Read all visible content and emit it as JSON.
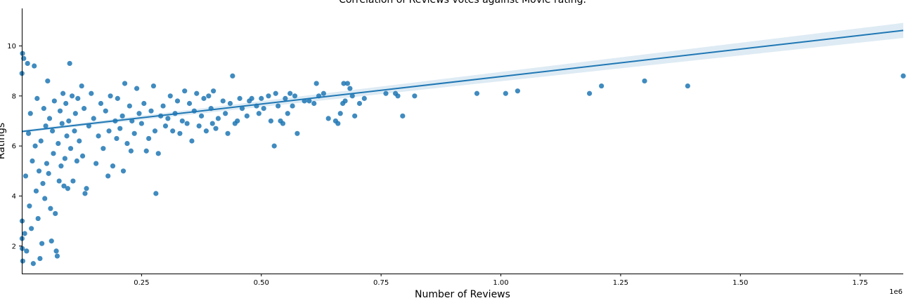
{
  "chart_data": {
    "type": "scatter",
    "title": "Correlation of Reviews votes against Movie rating.",
    "xlabel": "Number of Reviews",
    "ylabel": "Ratings",
    "x_offset_label": "1e6",
    "xlim": [
      0,
      1840000
    ],
    "ylim": [
      0.9,
      11.5
    ],
    "xticks": [
      {
        "value": 250000,
        "label": "0.25"
      },
      {
        "value": 500000,
        "label": "0.50"
      },
      {
        "value": 750000,
        "label": "0.75"
      },
      {
        "value": 1000000,
        "label": "1.00"
      },
      {
        "value": 1250000,
        "label": "1.25"
      },
      {
        "value": 1500000,
        "label": "1.50"
      },
      {
        "value": 1750000,
        "label": "1.75"
      }
    ],
    "yticks": [
      {
        "value": 2,
        "label": "2"
      },
      {
        "value": 4,
        "label": "4"
      },
      {
        "value": 6,
        "label": "6"
      },
      {
        "value": 8,
        "label": "8"
      },
      {
        "value": 10,
        "label": "10"
      }
    ],
    "grid": false,
    "colors": {
      "points": "#1f77b4",
      "line": "#1f77b4",
      "band": "#1f77b4"
    },
    "regression": {
      "x": [
        0,
        1840000
      ],
      "y": [
        6.58,
        10.62
      ],
      "ci_halfwidth_at_x0": 0.05,
      "ci_halfwidth_at_xmax": 0.3
    },
    "points": [
      [
        1840000,
        8.8
      ],
      [
        1390000,
        8.4
      ],
      [
        1300000,
        8.6
      ],
      [
        1210000,
        8.4
      ],
      [
        1185000,
        8.1
      ],
      [
        1035000,
        8.2
      ],
      [
        1010000,
        8.1
      ],
      [
        950000,
        8.1
      ],
      [
        820000,
        8.0
      ],
      [
        795000,
        7.2
      ],
      [
        785000,
        8.0
      ],
      [
        780000,
        8.1
      ],
      [
        760000,
        8.1
      ],
      [
        715000,
        7.9
      ],
      [
        705000,
        7.7
      ],
      [
        695000,
        7.2
      ],
      [
        690000,
        8.0
      ],
      [
        685000,
        8.3
      ],
      [
        680000,
        8.5
      ],
      [
        675000,
        7.8
      ],
      [
        672000,
        8.5
      ],
      [
        670000,
        7.7
      ],
      [
        665000,
        7.3
      ],
      [
        660000,
        6.9
      ],
      [
        655000,
        7.0
      ],
      [
        640000,
        7.1
      ],
      [
        630000,
        8.1
      ],
      [
        620000,
        8.0
      ],
      [
        615000,
        8.5
      ],
      [
        610000,
        7.7
      ],
      [
        600000,
        7.8
      ],
      [
        590000,
        7.8
      ],
      [
        575000,
        6.5
      ],
      [
        570000,
        8.0
      ],
      [
        565000,
        7.6
      ],
      [
        560000,
        8.1
      ],
      [
        555000,
        7.3
      ],
      [
        550000,
        7.9
      ],
      [
        545000,
        6.9
      ],
      [
        540000,
        7.0
      ],
      [
        535000,
        7.6
      ],
      [
        530000,
        8.1
      ],
      [
        527000,
        6.0
      ],
      [
        520000,
        7.0
      ],
      [
        515000,
        8.0
      ],
      [
        505000,
        7.5
      ],
      [
        500000,
        7.9
      ],
      [
        495000,
        7.3
      ],
      [
        490000,
        7.6
      ],
      [
        480000,
        7.9
      ],
      [
        475000,
        7.8
      ],
      [
        470000,
        7.2
      ],
      [
        460000,
        7.5
      ],
      [
        455000,
        7.9
      ],
      [
        450000,
        7.0
      ],
      [
        445000,
        6.9
      ],
      [
        440000,
        8.8
      ],
      [
        435000,
        7.7
      ],
      [
        430000,
        6.5
      ],
      [
        425000,
        7.3
      ],
      [
        420000,
        7.8
      ],
      [
        410000,
        7.1
      ],
      [
        405000,
        6.7
      ],
      [
        400000,
        8.2
      ],
      [
        398000,
        6.9
      ],
      [
        395000,
        7.5
      ],
      [
        390000,
        8.0
      ],
      [
        385000,
        6.6
      ],
      [
        380000,
        7.9
      ],
      [
        375000,
        7.2
      ],
      [
        370000,
        6.8
      ],
      [
        365000,
        8.1
      ],
      [
        360000,
        7.4
      ],
      [
        355000,
        6.2
      ],
      [
        350000,
        7.7
      ],
      [
        345000,
        6.9
      ],
      [
        340000,
        8.2
      ],
      [
        335000,
        7.0
      ],
      [
        330000,
        6.5
      ],
      [
        325000,
        7.8
      ],
      [
        320000,
        7.3
      ],
      [
        315000,
        6.6
      ],
      [
        310000,
        8.0
      ],
      [
        305000,
        7.1
      ],
      [
        300000,
        6.8
      ],
      [
        295000,
        7.6
      ],
      [
        290000,
        7.2
      ],
      [
        285000,
        5.7
      ],
      [
        280000,
        4.1
      ],
      [
        278000,
        6.6
      ],
      [
        275000,
        8.4
      ],
      [
        270000,
        7.4
      ],
      [
        265000,
        6.3
      ],
      [
        260000,
        5.8
      ],
      [
        255000,
        7.7
      ],
      [
        250000,
        6.9
      ],
      [
        245000,
        7.3
      ],
      [
        240000,
        8.3
      ],
      [
        235000,
        6.5
      ],
      [
        230000,
        7.0
      ],
      [
        228000,
        5.8
      ],
      [
        225000,
        7.6
      ],
      [
        220000,
        6.1
      ],
      [
        215000,
        8.5
      ],
      [
        212000,
        5.0
      ],
      [
        210000,
        7.2
      ],
      [
        205000,
        6.7
      ],
      [
        200000,
        7.9
      ],
      [
        198000,
        6.3
      ],
      [
        195000,
        7.0
      ],
      [
        190000,
        5.2
      ],
      [
        185000,
        8.0
      ],
      [
        182000,
        6.6
      ],
      [
        180000,
        4.8
      ],
      [
        175000,
        7.4
      ],
      [
        170000,
        5.9
      ],
      [
        165000,
        7.7
      ],
      [
        160000,
        6.4
      ],
      [
        155000,
        5.3
      ],
      [
        150000,
        7.1
      ],
      [
        145000,
        8.1
      ],
      [
        140000,
        6.8
      ],
      [
        135000,
        4.3
      ],
      [
        132000,
        4.1
      ],
      [
        130000,
        7.5
      ],
      [
        127000,
        5.6
      ],
      [
        125000,
        8.4
      ],
      [
        120000,
        6.2
      ],
      [
        117000,
        7.9
      ],
      [
        115000,
        5.4
      ],
      [
        112000,
        7.3
      ],
      [
        110000,
        6.6
      ],
      [
        107000,
        4.6
      ],
      [
        105000,
        8.0
      ],
      [
        102000,
        5.9
      ],
      [
        100000,
        9.3
      ],
      [
        98000,
        7.0
      ],
      [
        96000,
        4.3
      ],
      [
        94000,
        6.4
      ],
      [
        92000,
        7.7
      ],
      [
        90000,
        5.5
      ],
      [
        88000,
        4.4
      ],
      [
        86000,
        8.1
      ],
      [
        84000,
        6.9
      ],
      [
        82000,
        5.2
      ],
      [
        80000,
        7.4
      ],
      [
        78000,
        4.6
      ],
      [
        76000,
        6.1
      ],
      [
        74000,
        1.6
      ],
      [
        72000,
        1.8
      ],
      [
        70000,
        3.3
      ],
      [
        68000,
        7.8
      ],
      [
        66000,
        5.7
      ],
      [
        64000,
        6.6
      ],
      [
        62000,
        2.2
      ],
      [
        60000,
        3.5
      ],
      [
        58000,
        7.1
      ],
      [
        56000,
        4.9
      ],
      [
        54000,
        8.6
      ],
      [
        52000,
        5.3
      ],
      [
        50000,
        6.8
      ],
      [
        48000,
        3.9
      ],
      [
        46000,
        7.5
      ],
      [
        44000,
        4.5
      ],
      [
        42000,
        2.1
      ],
      [
        40000,
        6.2
      ],
      [
        38000,
        1.5
      ],
      [
        36000,
        5.0
      ],
      [
        34000,
        3.1
      ],
      [
        32000,
        7.9
      ],
      [
        30000,
        4.2
      ],
      [
        28000,
        6.0
      ],
      [
        26000,
        9.2
      ],
      [
        24000,
        1.3
      ],
      [
        22000,
        5.4
      ],
      [
        20000,
        2.7
      ],
      [
        18000,
        7.3
      ],
      [
        16000,
        3.6
      ],
      [
        14000,
        6.5
      ],
      [
        12000,
        9.3
      ],
      [
        10000,
        1.8
      ],
      [
        8000,
        4.8
      ],
      [
        6000,
        2.5
      ],
      [
        4000,
        9.5
      ],
      [
        2000,
        1.4
      ],
      [
        1500,
        9.7
      ],
      [
        1000,
        1.9
      ],
      [
        800,
        3.0
      ],
      [
        600,
        2.3
      ],
      [
        400,
        8.9
      ]
    ]
  }
}
